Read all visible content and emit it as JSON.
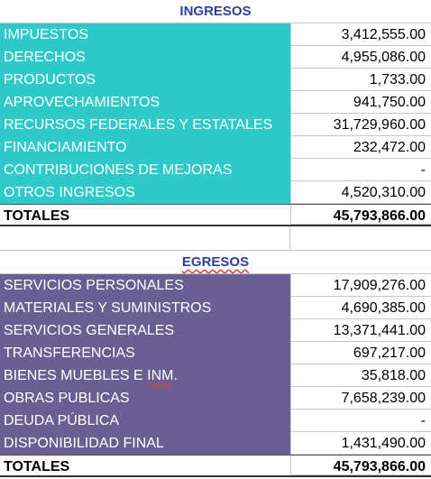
{
  "ingresos": {
    "title": "INGRESOS",
    "rows": [
      {
        "label": "IMPUESTOS",
        "value": "3,412,555.00"
      },
      {
        "label": "DERECHOS",
        "value": "4,955,086.00"
      },
      {
        "label": "PRODUCTOS",
        "value": "1,733.00"
      },
      {
        "label": "APROVECHAMIENTOS",
        "value": "941,750.00"
      },
      {
        "label": "RECURSOS FEDERALES Y ESTATALES",
        "value": "31,729,960.00"
      },
      {
        "label": "FINANCIAMIENTO",
        "value": "232,472.00"
      },
      {
        "label": "CONTRIBUCIONES DE MEJORAS",
        "value": "-"
      },
      {
        "label": "OTROS INGRESOS",
        "value": "4,520,310.00"
      }
    ],
    "total_label": "TOTALES",
    "total_value": "45,793,866.00"
  },
  "egresos": {
    "title": "EGRESOS",
    "rows": [
      {
        "label": "SERVICIOS PERSONALES",
        "value": "17,909,276.00"
      },
      {
        "label": "MATERIALES Y SUMINISTROS",
        "value": "4,690,385.00"
      },
      {
        "label": "SERVICIOS GENERALES",
        "value": "13,371,441.00"
      },
      {
        "label": "TRANSFERENCIAS",
        "value": "697,217.00"
      },
      {
        "label_pre": "BIENES MUEBLES E ",
        "label_mark": "INM",
        "label_post": ".",
        "value": "35,818.00"
      },
      {
        "label": "OBRAS PUBLICAS",
        "value": "7,658,239.00"
      },
      {
        "label": "DEUDA PÚBLICA",
        "value": "-"
      },
      {
        "label": "DISPONIBILIDAD FINAL",
        "value": "1,431,490.00"
      }
    ],
    "total_label": "TOTALES",
    "total_value": "45,793,866.00"
  },
  "colors": {
    "ingresos_fill": "#2fc9c9",
    "egresos_fill": "#6a5f93",
    "header_text": "#2e3f9a"
  }
}
